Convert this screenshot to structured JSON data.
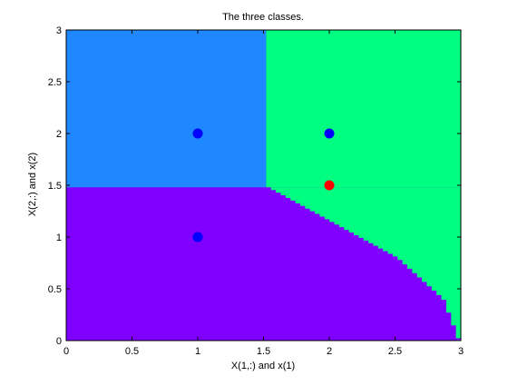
{
  "chart_data": {
    "type": "scatter",
    "title": "The three classes.",
    "xlabel": "X(1,:) and x(1)",
    "ylabel": "X(2,:) and x(2)",
    "xlim": [
      0,
      3
    ],
    "ylim": [
      0,
      3
    ],
    "xticks": [
      "0",
      "0.5",
      "1",
      "1.5",
      "2",
      "2.5",
      "3"
    ],
    "yticks": [
      "0",
      "0.5",
      "1",
      "1.5",
      "2",
      "2.5",
      "3"
    ],
    "grid": false,
    "regions": {
      "upper_left": {
        "color": "#1f87ff",
        "x": [
          0,
          1.52
        ],
        "y": [
          1.48,
          3
        ]
      },
      "upper_right": {
        "color": "#00ff80",
        "x": [
          1.52,
          3
        ],
        "y": [
          1.48,
          3
        ]
      },
      "lower": {
        "color": "#7f00ff"
      },
      "lower_right": {
        "color": "#00ff80",
        "boundary": [
          [
            1.52,
            1.48
          ],
          [
            2.5,
            0.8
          ],
          [
            2.85,
            0.4
          ],
          [
            2.97,
            0.0
          ]
        ]
      }
    },
    "series": [
      {
        "color": "#0000ff",
        "x": [
          1,
          2,
          1
        ],
        "y": [
          2,
          2,
          1
        ]
      },
      {
        "color": "#ff0000",
        "x": [
          2
        ],
        "y": [
          1.5
        ]
      }
    ]
  }
}
